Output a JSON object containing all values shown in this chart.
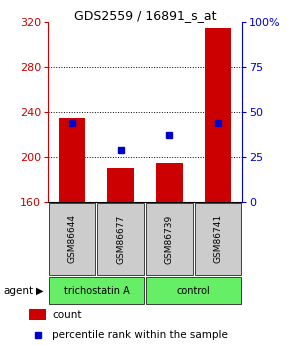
{
  "title": "GDS2559 / 16891_s_at",
  "samples": [
    "GSM86644",
    "GSM86677",
    "GSM86739",
    "GSM86741"
  ],
  "bar_values": [
    235,
    190,
    195,
    315
  ],
  "bar_baseline": 160,
  "percentile_values": [
    44,
    29,
    37,
    44
  ],
  "bar_color": "#cc0000",
  "percentile_color": "#0000cc",
  "ylim_left": [
    160,
    320
  ],
  "yticks_left": [
    160,
    200,
    240,
    280,
    320
  ],
  "ylim_right": [
    0,
    100
  ],
  "yticks_right": [
    0,
    25,
    50,
    75,
    100
  ],
  "yticklabels_right": [
    "0",
    "25",
    "50",
    "75",
    "100%"
  ],
  "agent_labels": [
    "trichostatin A",
    "control"
  ],
  "agent_color": "#66ee66",
  "sample_box_color": "#cccccc",
  "legend_count": "count",
  "legend_percentile": "percentile rank within the sample",
  "bar_width": 0.55
}
